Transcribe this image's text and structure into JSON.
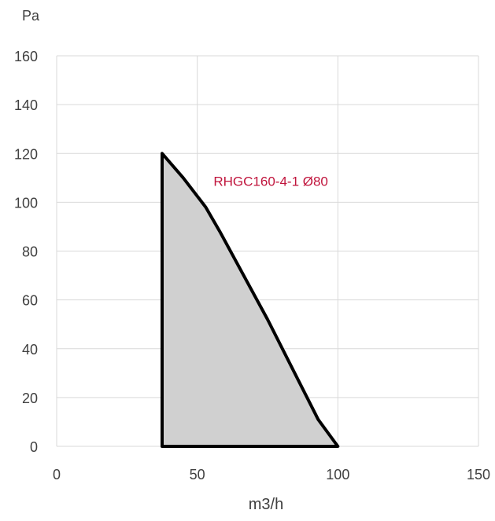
{
  "chart_data": {
    "type": "area",
    "title": "",
    "xlabel": "m3/h",
    "ylabel": "Pa",
    "xlim": [
      0,
      150
    ],
    "ylim": [
      0,
      160
    ],
    "x_ticks": [
      0,
      50,
      100,
      150
    ],
    "y_ticks": [
      0,
      20,
      40,
      60,
      80,
      100,
      120,
      140,
      160
    ],
    "grid": true,
    "series": [
      {
        "name": "RHGC160-4-1 Ø80",
        "fill_color": "#d0d0d0",
        "line_color": "#000000",
        "label_color": "#c0143c",
        "points": [
          {
            "x": 37.5,
            "y": 0
          },
          {
            "x": 37.5,
            "y": 120
          },
          {
            "x": 45,
            "y": 110
          },
          {
            "x": 53,
            "y": 98
          },
          {
            "x": 58,
            "y": 88
          },
          {
            "x": 75,
            "y": 52
          },
          {
            "x": 93,
            "y": 11
          },
          {
            "x": 100,
            "y": 0
          }
        ]
      }
    ],
    "gridline_color": "#d9d9d9"
  }
}
